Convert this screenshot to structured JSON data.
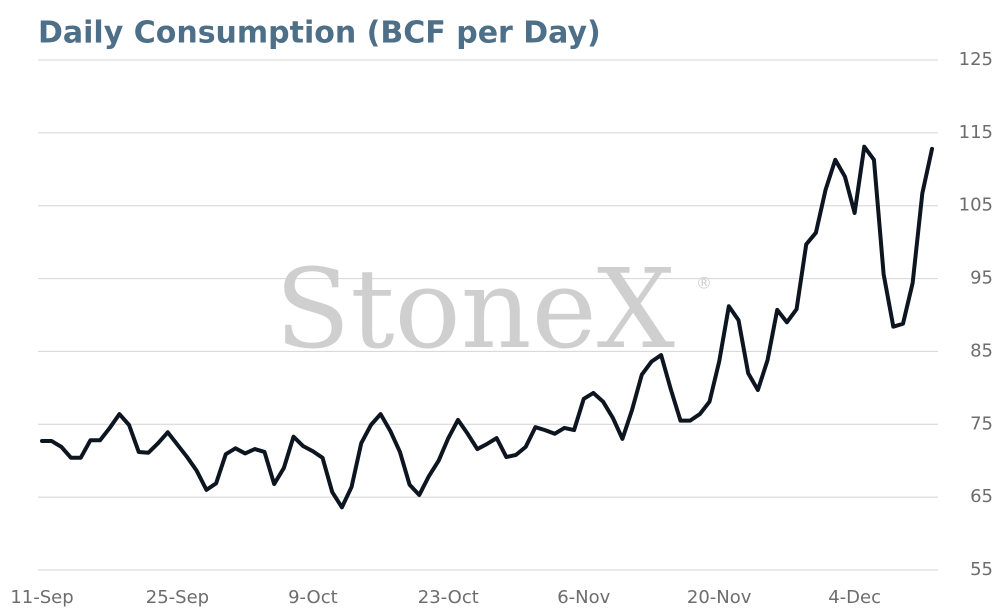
{
  "chart_data": {
    "type": "line",
    "title": "Daily Consumption (BCF per Day)",
    "watermark": "StoneX",
    "watermark_mark": "®",
    "categories": [
      "11-Sep",
      null,
      null,
      null,
      null,
      null,
      null,
      null,
      null,
      null,
      null,
      null,
      null,
      null,
      "25-Sep",
      null,
      null,
      null,
      null,
      null,
      null,
      null,
      null,
      null,
      null,
      null,
      null,
      null,
      "9-Oct",
      null,
      null,
      null,
      null,
      null,
      null,
      null,
      null,
      null,
      null,
      null,
      null,
      null,
      "23-Oct",
      null,
      null,
      null,
      null,
      null,
      null,
      null,
      null,
      null,
      null,
      null,
      null,
      null,
      "6-Nov",
      null,
      null,
      null,
      null,
      null,
      null,
      null,
      null,
      null,
      null,
      null,
      null,
      null,
      "20-Nov",
      null,
      null,
      null,
      null,
      null,
      null,
      null,
      null,
      null,
      null,
      null,
      null,
      null,
      "4-Dec",
      null,
      null,
      null,
      null,
      null,
      null,
      null,
      null
    ],
    "series": [
      {
        "name": "Daily Consumption",
        "color": "#0d1520",
        "values": [
          72.7,
          72.7,
          71.9,
          70.4,
          70.4,
          72.8,
          72.8,
          74.5,
          76.4,
          74.9,
          71.2,
          71.1,
          72.4,
          73.9,
          72.2,
          70.5,
          68.6,
          66.0,
          66.9,
          70.9,
          71.7,
          71.0,
          71.6,
          71.2,
          66.8,
          69.0,
          73.3,
          72.0,
          71.3,
          70.4,
          65.7,
          63.6,
          66.4,
          72.4,
          74.9,
          76.4,
          74.1,
          71.2,
          66.7,
          65.3,
          67.9,
          70.0,
          73.1,
          75.6,
          73.7,
          71.6,
          72.3,
          73.1,
          70.5,
          70.8,
          71.9,
          74.6,
          74.2,
          73.7,
          74.5,
          74.2,
          78.5,
          79.3,
          78.1,
          75.9,
          73.0,
          77.0,
          81.8,
          83.6,
          84.5,
          79.8,
          75.5,
          75.5,
          76.4,
          78.1,
          83.6,
          91.2,
          89.3,
          82.0,
          79.7,
          83.8,
          90.7,
          89.0,
          90.8,
          99.7,
          101.3,
          107.2,
          111.3,
          109.0,
          104.0,
          113.1,
          111.3,
          95.6,
          88.4,
          88.8,
          94.4,
          106.7,
          112.8
        ]
      }
    ],
    "ylim": [
      55,
      125
    ],
    "yticks": [
      55,
      65,
      75,
      85,
      95,
      105,
      115,
      125
    ],
    "grid": true
  }
}
